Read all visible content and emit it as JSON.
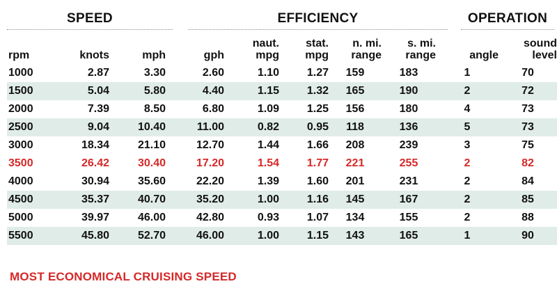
{
  "groups": {
    "speed": "SPEED",
    "efficiency": "EFFICIENCY",
    "operation": "OPERATION"
  },
  "columns": {
    "rpm": "rpm",
    "knots": "knots",
    "mph": "mph",
    "gph": "gph",
    "naut_mpg": [
      "naut.",
      "mpg"
    ],
    "stat_mpg": [
      "stat.",
      "mpg"
    ],
    "n_range": [
      "n. mi.",
      "range"
    ],
    "s_range": [
      "s. mi.",
      "range"
    ],
    "angle": "angle",
    "sound": [
      "sound",
      "level"
    ]
  },
  "rows": [
    [
      "1000",
      "2.87",
      "3.30",
      "2.60",
      "1.10",
      "1.27",
      "159",
      "183",
      "1",
      "70"
    ],
    [
      "1500",
      "5.04",
      "5.80",
      "4.40",
      "1.15",
      "1.32",
      "165",
      "190",
      "2",
      "72"
    ],
    [
      "2000",
      "7.39",
      "8.50",
      "6.80",
      "1.09",
      "1.25",
      "156",
      "180",
      "4",
      "73"
    ],
    [
      "2500",
      "9.04",
      "10.40",
      "11.00",
      "0.82",
      "0.95",
      "118",
      "136",
      "5",
      "73"
    ],
    [
      "3000",
      "18.34",
      "21.10",
      "12.70",
      "1.44",
      "1.66",
      "208",
      "239",
      "3",
      "75"
    ],
    [
      "3500",
      "26.42",
      "30.40",
      "17.20",
      "1.54",
      "1.77",
      "221",
      "255",
      "2",
      "82"
    ],
    [
      "4000",
      "30.94",
      "35.60",
      "22.20",
      "1.39",
      "1.60",
      "201",
      "231",
      "2",
      "84"
    ],
    [
      "4500",
      "35.37",
      "40.70",
      "35.20",
      "1.00",
      "1.16",
      "145",
      "167",
      "2",
      "85"
    ],
    [
      "5000",
      "39.97",
      "46.00",
      "42.80",
      "0.93",
      "1.07",
      "134",
      "155",
      "2",
      "88"
    ],
    [
      "5500",
      "45.80",
      "52.70",
      "46.00",
      "1.00",
      "1.15",
      "143",
      "165",
      "1",
      "90"
    ]
  ],
  "footnote": "MOST ECONOMICAL CRUISING SPEED",
  "colors": {
    "highlight": "#d62828",
    "row_shade": "#e0ece8"
  }
}
